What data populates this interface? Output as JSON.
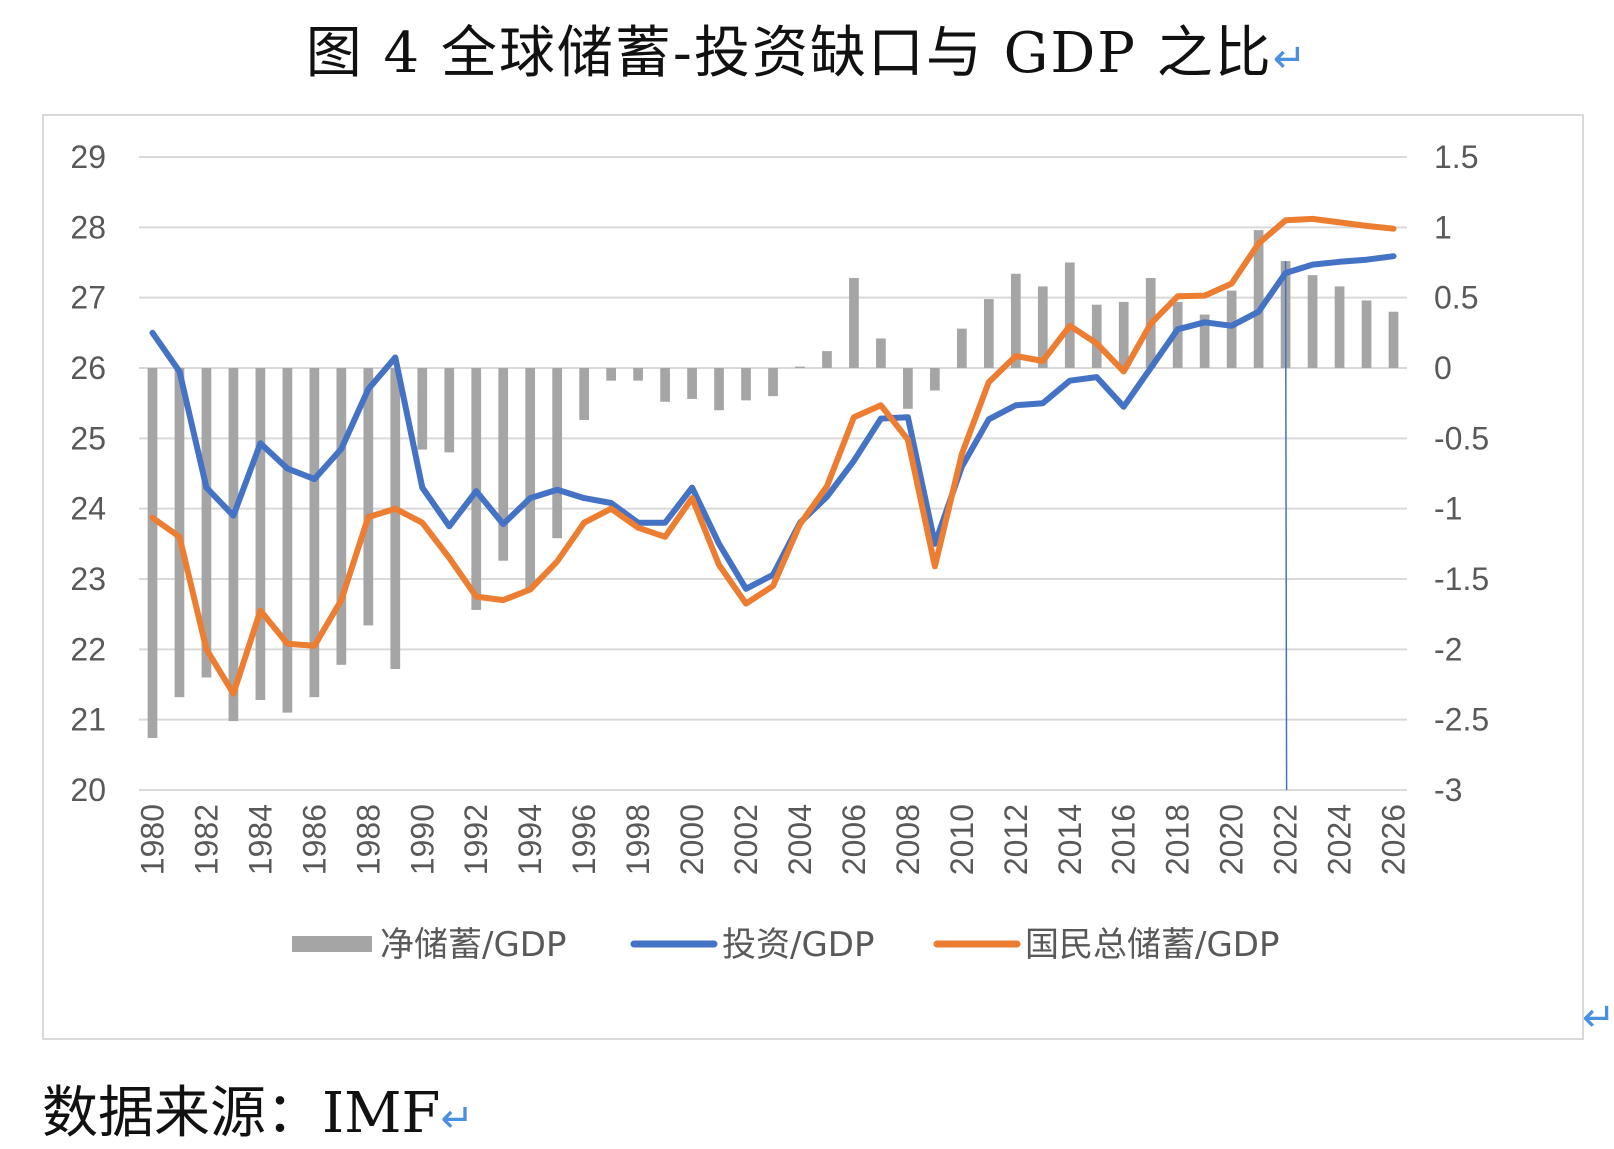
{
  "figure": {
    "title": "图 4   全球储蓄-投资缺口与 GDP 之比",
    "source": "数据来源：IMF",
    "paragraph_mark": "↵"
  },
  "chart_data": {
    "type": "bar+line",
    "years": [
      1980,
      1981,
      1982,
      1983,
      1984,
      1985,
      1986,
      1987,
      1988,
      1989,
      1990,
      1991,
      1992,
      1993,
      1994,
      1995,
      1996,
      1997,
      1998,
      1999,
      2000,
      2001,
      2002,
      2003,
      2004,
      2005,
      2006,
      2007,
      2008,
      2009,
      2010,
      2011,
      2012,
      2013,
      2014,
      2015,
      2016,
      2017,
      2018,
      2019,
      2020,
      2021,
      2022,
      2023,
      2024,
      2025,
      2026
    ],
    "x_tick_labels": [
      "1980",
      "1982",
      "1984",
      "1986",
      "1988",
      "1990",
      "1992",
      "1994",
      "1996",
      "1998",
      "2000",
      "2002",
      "2004",
      "2006",
      "2008",
      "2010",
      "2012",
      "2014",
      "2016",
      "2018",
      "2020",
      "2022",
      "2024",
      "2026"
    ],
    "y_left": {
      "min": 20,
      "max": 29,
      "ticks": [
        "20",
        "21",
        "22",
        "23",
        "24",
        "25",
        "26",
        "27",
        "28",
        "29"
      ]
    },
    "y_right": {
      "min": -3,
      "max": 1.5,
      "ticks": [
        "-3",
        "-2.5",
        "-2",
        "-1.5",
        "-1",
        "-0.5",
        "0",
        "0.5",
        "1",
        "1.5"
      ]
    },
    "grid": true,
    "legend_position": "bottom",
    "series": [
      {
        "name": "净储蓄/GDP",
        "kind": "bar",
        "axis": "right",
        "color": "#a5a5a5",
        "values": [
          -2.63,
          -2.34,
          -2.2,
          -2.51,
          -2.36,
          -2.45,
          -2.34,
          -2.11,
          -1.83,
          -2.14,
          -0.58,
          -0.6,
          -1.72,
          -1.37,
          -1.57,
          -1.21,
          -0.37,
          -0.09,
          -0.09,
          -0.24,
          -0.22,
          -0.3,
          -0.23,
          -0.2,
          0.01,
          0.12,
          0.64,
          0.21,
          -0.29,
          -0.16,
          0.28,
          0.49,
          0.67,
          0.58,
          0.75,
          0.45,
          0.47,
          0.64,
          0.47,
          0.38,
          0.55,
          0.98,
          0.76,
          0.66,
          0.58,
          0.48,
          0.4
        ]
      },
      {
        "name": "投资/GDP",
        "kind": "line",
        "axis": "left",
        "color": "#4472c4",
        "values": [
          26.5,
          25.95,
          24.3,
          23.9,
          24.93,
          24.57,
          24.42,
          24.85,
          25.7,
          26.15,
          24.3,
          23.75,
          24.25,
          23.78,
          24.15,
          24.27,
          24.15,
          24.08,
          23.8,
          23.8,
          24.3,
          23.5,
          22.86,
          23.06,
          23.8,
          24.17,
          24.68,
          25.28,
          25.3,
          23.5,
          24.6,
          25.27,
          25.47,
          25.5,
          25.82,
          25.87,
          25.45,
          26.0,
          26.55,
          26.65,
          26.6,
          26.8,
          27.35,
          27.47,
          27.51,
          27.54,
          27.59
        ]
      },
      {
        "name": "国民总储蓄/GDP",
        "kind": "line",
        "axis": "left",
        "color": "#ed7d31",
        "values": [
          23.87,
          23.6,
          22.0,
          21.37,
          22.55,
          22.08,
          22.05,
          22.7,
          23.88,
          24.0,
          23.8,
          23.3,
          22.75,
          22.7,
          22.85,
          23.25,
          23.8,
          24.0,
          23.73,
          23.6,
          24.15,
          23.2,
          22.65,
          22.9,
          23.78,
          24.32,
          25.3,
          25.47,
          24.98,
          23.18,
          24.78,
          25.8,
          26.17,
          26.1,
          26.6,
          26.35,
          25.95,
          26.63,
          27.02,
          27.03,
          27.2,
          27.77,
          28.1,
          28.12,
          28.07,
          28.02,
          27.98
        ]
      }
    ],
    "marker_line": {
      "year": 2022,
      "color": "#4472c4"
    }
  }
}
